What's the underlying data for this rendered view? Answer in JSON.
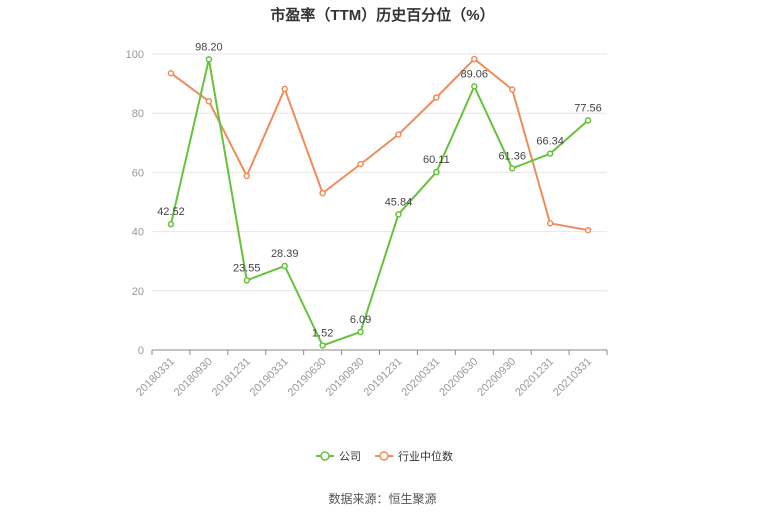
{
  "chart_data": {
    "type": "line",
    "title": "市盈率（TTM）历史百分位（%）",
    "x": [
      "20180331",
      "20180930",
      "20181231",
      "20190331",
      "20190630",
      "20190930",
      "20191231",
      "20200331",
      "20200630",
      "20200930",
      "20201231",
      "20210331"
    ],
    "ylim": [
      0,
      100
    ],
    "yticks": [
      "0",
      "20",
      "40",
      "60",
      "80",
      "100"
    ],
    "grid": true,
    "legend_position": "bottom",
    "series": [
      {
        "name": "公司",
        "color": "#66c23a",
        "values": [
          42.52,
          98.2,
          23.55,
          28.39,
          1.52,
          6.09,
          45.84,
          60.11,
          89.06,
          61.36,
          66.34,
          77.56
        ],
        "labels": [
          "42.52",
          "98.20",
          "23.55",
          "28.39",
          "1.52",
          "6.09",
          "45.84",
          "60.11",
          "89.06",
          "61.36",
          "66.34",
          "77.56"
        ]
      },
      {
        "name": "行业中位数",
        "color": "#f08c5a",
        "values": [
          93.5,
          84.0,
          58.8,
          88.2,
          53.0,
          62.8,
          72.8,
          85.3,
          98.3,
          88.0,
          42.8,
          40.5
        ]
      }
    ]
  },
  "source_text": "数据来源：恒生聚源"
}
